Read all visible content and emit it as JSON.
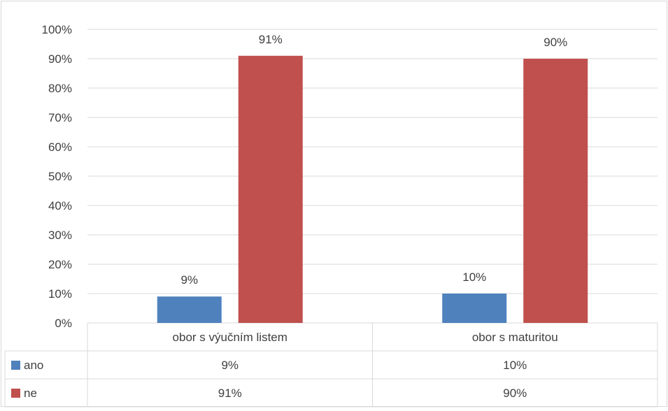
{
  "chart_data": {
    "type": "bar",
    "categories": [
      "obor s výučním listem",
      "obor s maturitou"
    ],
    "series": [
      {
        "name": "ano",
        "values": [
          9,
          10
        ],
        "labels": [
          "9%",
          "10%"
        ],
        "color": "#4f81bd"
      },
      {
        "name": "ne",
        "values": [
          91,
          90
        ],
        "labels": [
          "91%",
          "90%"
        ],
        "color": "#c0504d"
      }
    ],
    "ylim": [
      0,
      100
    ],
    "yticks": [
      "0%",
      "10%",
      "20%",
      "30%",
      "40%",
      "50%",
      "60%",
      "70%",
      "80%",
      "90%",
      "100%"
    ],
    "grid": true,
    "legend": "data-table",
    "title": "",
    "xlabel": "",
    "ylabel": ""
  }
}
